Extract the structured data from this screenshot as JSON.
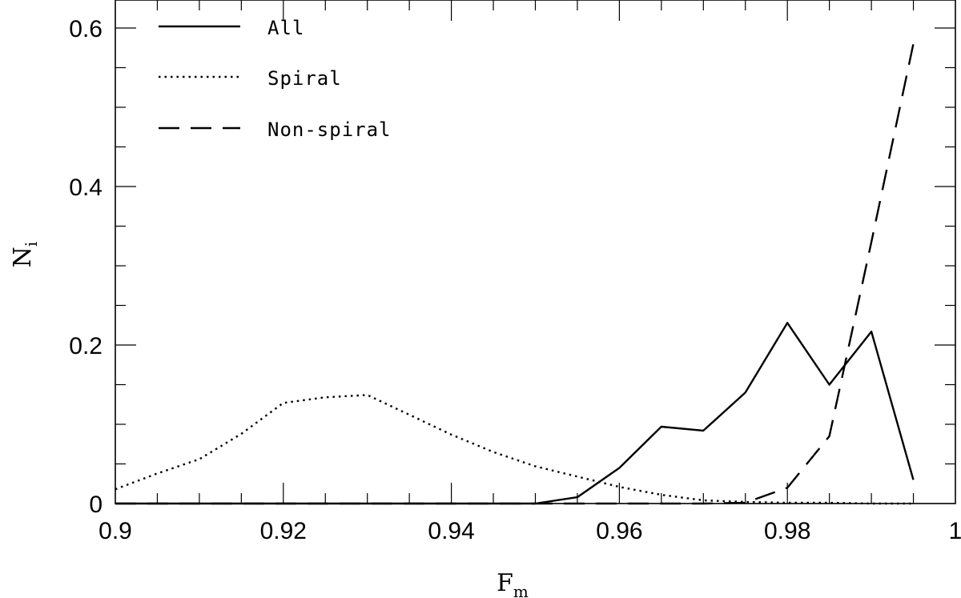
{
  "chart_data": {
    "type": "line",
    "xlabel": "F",
    "xlabel_sub": "m",
    "ylabel": "N",
    "ylabel_sub": "i",
    "xlim": [
      0.9,
      1.0
    ],
    "ylim": [
      0,
      0.6
    ],
    "x_ticks": [
      0.9,
      0.92,
      0.94,
      0.96,
      0.98,
      1.0
    ],
    "x_tick_labels": [
      "0.9",
      "0.92",
      "0.94",
      "0.96",
      "0.98",
      "1"
    ],
    "y_ticks": [
      0,
      0.2,
      0.4,
      0.6
    ],
    "y_tick_labels": [
      "0",
      "0.2",
      "0.4",
      "0.6"
    ],
    "legend_position": "top-left",
    "series": [
      {
        "name": "All",
        "style": "solid",
        "x": [
          0.9,
          0.905,
          0.91,
          0.915,
          0.92,
          0.925,
          0.93,
          0.935,
          0.94,
          0.945,
          0.95,
          0.955,
          0.96,
          0.965,
          0.97,
          0.975,
          0.98,
          0.985,
          0.99,
          0.995
        ],
        "y": [
          0,
          0,
          0,
          0,
          0,
          0,
          0,
          0,
          0,
          0,
          0,
          0.008,
          0.045,
          0.097,
          0.092,
          0.14,
          0.228,
          0.15,
          0.217,
          0.03
        ]
      },
      {
        "name": "Spiral",
        "style": "dotted",
        "x": [
          0.9,
          0.905,
          0.91,
          0.915,
          0.92,
          0.925,
          0.93,
          0.935,
          0.94,
          0.945,
          0.95,
          0.955,
          0.96,
          0.965,
          0.97,
          0.975,
          0.98,
          0.985,
          0.99,
          0.995
        ],
        "y": [
          0.018,
          0.038,
          0.056,
          0.088,
          0.127,
          0.134,
          0.137,
          0.112,
          0.087,
          0.065,
          0.047,
          0.034,
          0.021,
          0.011,
          0.004,
          0.002,
          0.001,
          0.001,
          0.0,
          0.0
        ]
      },
      {
        "name": "Non-spiral",
        "style": "dashed",
        "x": [
          0.9,
          0.905,
          0.91,
          0.915,
          0.92,
          0.925,
          0.93,
          0.935,
          0.94,
          0.945,
          0.95,
          0.955,
          0.96,
          0.965,
          0.97,
          0.975,
          0.98,
          0.985,
          0.99,
          0.995
        ],
        "y": [
          0,
          0,
          0,
          0,
          0,
          0,
          0,
          0,
          0,
          0,
          0,
          0,
          0,
          0,
          0,
          0.001,
          0.02,
          0.085,
          0.33,
          0.58
        ]
      }
    ]
  }
}
